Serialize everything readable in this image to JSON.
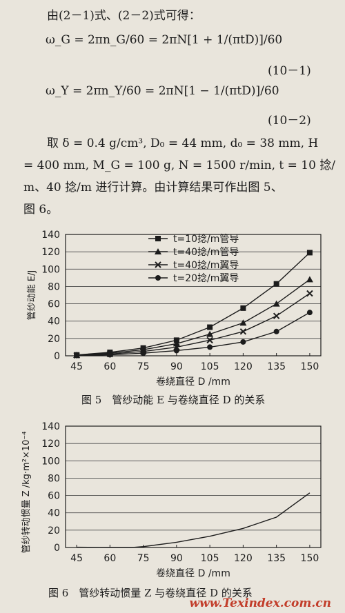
{
  "text": {
    "l1": "由(2－1)式、(2－2)式可得：",
    "l2": "ω_G = 2πn_G/60 = 2πN[1 + 1/(πtD)]/60",
    "eq1": "(10－1)",
    "l3": "ω_Y = 2πn_Y/60 = 2πN[1 − 1/(πtD)]/60",
    "eq2": "(10－2)",
    "l4": "取 δ = 0.4 g/cm³, D₀ = 44 mm, d₀ = 38 mm, H",
    "l5": "= 400 mm, M_G = 100 g, N = 1500 r/min, t = 10 捻/",
    "l6": "m、40 捻/m 进行计算。由计算结果可作出图 5、",
    "l7": "图 6。"
  },
  "figure5": {
    "caption": "图 5　管纱动能 E 与卷绕直径 D 的关系"
  },
  "figure6": {
    "caption": "图 6　管纱转动惯量 Z 与卷绕直径 D 的关系"
  },
  "watermark": "www.Texindex.com.cn",
  "chart_data": [
    {
      "type": "line",
      "xlabel": "卷绕直径 D /mm",
      "ylabel": "管纱动能 E/J",
      "x": [
        45,
        60,
        75,
        90,
        105,
        120,
        135,
        150
      ],
      "xlim": [
        40,
        155
      ],
      "ylim": [
        0,
        140
      ],
      "yticks": [
        0,
        20,
        40,
        60,
        80,
        100,
        120,
        140
      ],
      "legend": "top-left",
      "series": [
        {
          "name": "t=10捻/m管导",
          "marker": "square",
          "values": [
            1,
            4,
            9,
            18,
            33,
            55,
            83,
            119
          ]
        },
        {
          "name": "t=40捻/m管导",
          "marker": "triangle",
          "values": [
            0.8,
            3,
            7,
            14,
            25,
            38,
            60,
            88
          ]
        },
        {
          "name": "t=40捻/m翼导",
          "marker": "cross",
          "values": [
            0.5,
            2,
            5,
            10,
            18,
            28,
            46,
            72
          ]
        },
        {
          "name": "t=20捻/m翼导",
          "marker": "circle",
          "values": [
            0.3,
            1.2,
            3,
            6,
            10,
            16,
            28,
            50
          ]
        }
      ]
    },
    {
      "type": "line",
      "xlabel": "卷绕直径 D /mm",
      "ylabel": "管纱转动惯量 Z /kg·m²×10⁻⁴",
      "x": [
        45,
        60,
        70,
        75,
        90,
        105,
        120,
        135,
        150
      ],
      "xlim": [
        40,
        155
      ],
      "ylim": [
        0,
        140
      ],
      "yticks": [
        0,
        20,
        40,
        60,
        80,
        100,
        120,
        140
      ],
      "series": [
        {
          "values": [
            0.3,
            0.1,
            0,
            1,
            6,
            13,
            22,
            35,
            63
          ]
        }
      ]
    }
  ]
}
